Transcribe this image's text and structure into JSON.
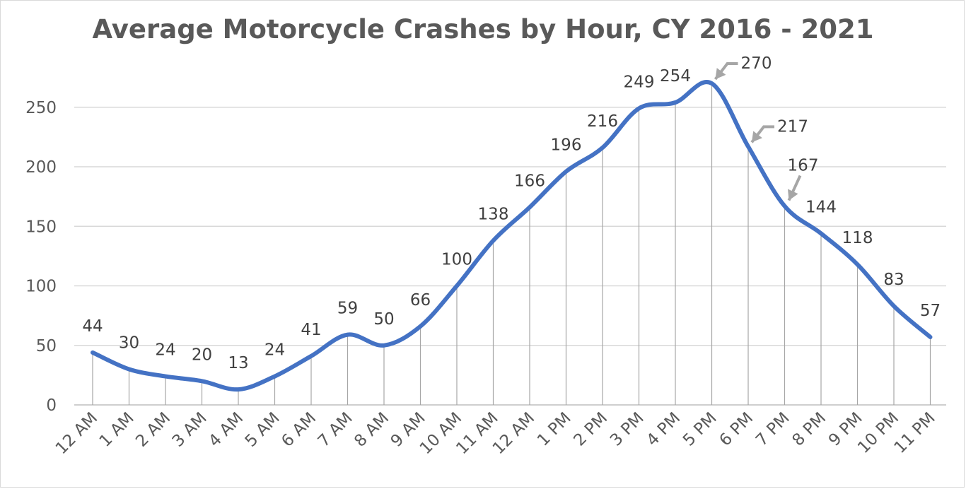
{
  "chart_data": {
    "type": "line",
    "title": "Average Motorcycle Crashes by Hour, CY 2016 - 2021",
    "xlabel": "",
    "ylabel": "",
    "categories": [
      "12 AM",
      "1 AM",
      "2 AM",
      "3 AM",
      "4 AM",
      "5 AM",
      "6 AM",
      "7 AM",
      "8 AM",
      "9 AM",
      "10 AM",
      "11 AM",
      "12 AM",
      "1 PM",
      "2 PM",
      "3 PM",
      "4 PM",
      "5 PM",
      "6 PM",
      "7 PM",
      "8 PM",
      "9 PM",
      "10 PM",
      "11 PM"
    ],
    "values": [
      44,
      30,
      24,
      20,
      13,
      24,
      41,
      59,
      50,
      66,
      100,
      138,
      166,
      196,
      216,
      249,
      254,
      270,
      217,
      167,
      144,
      118,
      83,
      57
    ],
    "ylim": [
      0,
      250
    ],
    "yticks": [
      "0",
      "50",
      "100",
      "150",
      "200",
      "250"
    ],
    "grid": true,
    "drop_lines": true,
    "smoothed": true,
    "line_color": "#4472c4",
    "legend": "none",
    "callout_arrows_on": [
      "5 PM",
      "6 PM",
      "7 PM"
    ]
  }
}
